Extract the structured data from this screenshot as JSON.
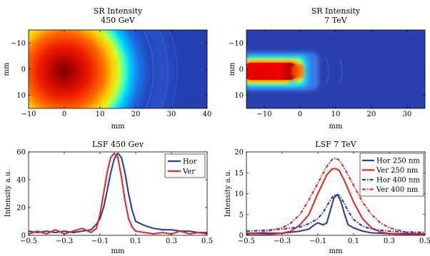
{
  "chart_data": [
    {
      "type": "heatmap",
      "title": "SR Intensity",
      "subtitle": "450 GeV",
      "xlabel": "mm",
      "ylabel": "mm",
      "xlim": [
        -10,
        40
      ],
      "ylim": [
        -15,
        15
      ],
      "y_reversed": true,
      "xticks": [
        -10,
        0,
        10,
        20,
        30,
        40
      ],
      "yticks": [
        -10,
        0,
        10
      ],
      "colormap": "jet",
      "peak_center": [
        0,
        0
      ],
      "description_values": {
        "peak_radius_mm": 6,
        "half_max_radius_mm": 14,
        "fringe_radius_mm": [
          19,
          25,
          32
        ]
      }
    },
    {
      "type": "heatmap",
      "title": "SR Intensity",
      "subtitle": "7 TeV",
      "xlabel": "mm",
      "ylabel": "mm",
      "xlim": [
        -15,
        35
      ],
      "ylim": [
        -15,
        15
      ],
      "y_reversed": true,
      "xticks": [
        -10,
        0,
        10,
        20,
        30
      ],
      "yticks": [
        -10,
        0,
        10
      ],
      "colormap": "jet",
      "peak_center": [
        -7,
        0
      ]
    },
    {
      "type": "line",
      "title": "LSF 450 Gev",
      "xlabel": "mm",
      "ylabel": "Intensity a.u.",
      "xlim": [
        -0.5,
        0.5
      ],
      "ylim": [
        0,
        60
      ],
      "xticks": [
        -0.5,
        -0.3,
        -0.1,
        0.1,
        0.3,
        0.5
      ],
      "xtick_labels": [
        "-0.5",
        "-0.3",
        "-0.1",
        "0.1",
        "0.3",
        "0.5"
      ],
      "yticks": [
        0,
        20,
        40,
        60
      ],
      "legend": "top-right",
      "series": [
        {
          "name": "Hor",
          "color": "#2b3f9e",
          "dash": "solid",
          "x": [
            -0.5,
            -0.45,
            -0.4,
            -0.35,
            -0.3,
            -0.25,
            -0.2,
            -0.15,
            -0.12,
            -0.1,
            -0.08,
            -0.06,
            -0.04,
            -0.02,
            0.0,
            0.02,
            0.04,
            0.06,
            0.08,
            0.1,
            0.15,
            0.2,
            0.25,
            0.3,
            0.35,
            0.4,
            0.45,
            0.5
          ],
          "y": [
            3,
            2,
            3,
            2,
            3,
            2,
            3,
            4,
            8,
            12,
            20,
            32,
            45,
            55,
            59,
            56,
            45,
            30,
            18,
            10,
            7,
            5,
            4,
            4,
            3,
            3,
            2,
            2
          ]
        },
        {
          "name": "Ver",
          "color": "#e8262b",
          "dash": "solid",
          "x": [
            -0.5,
            -0.45,
            -0.4,
            -0.35,
            -0.3,
            -0.25,
            -0.2,
            -0.15,
            -0.12,
            -0.1,
            -0.08,
            -0.06,
            -0.04,
            -0.02,
            0.0,
            0.02,
            0.04,
            0.06,
            0.08,
            0.1,
            0.15,
            0.2,
            0.25,
            0.3,
            0.35,
            0.4,
            0.45,
            0.5
          ],
          "y": [
            1,
            3,
            1,
            4,
            1,
            3,
            5,
            2,
            5,
            15,
            30,
            45,
            56,
            59,
            56,
            42,
            25,
            12,
            6,
            3,
            2,
            1,
            2,
            1,
            3,
            1,
            2,
            1
          ]
        }
      ]
    },
    {
      "type": "line",
      "title": "LSF 7 TeV",
      "xlabel": "mm",
      "ylabel": "Intensity a.u.",
      "xlim": [
        -0.5,
        0.5
      ],
      "ylim": [
        0,
        20
      ],
      "xticks": [
        -0.5,
        -0.3,
        -0.1,
        0.1,
        0.3,
        0.5
      ],
      "xtick_labels": [
        "-0.5",
        "-0.3",
        "-0.1",
        "0.1",
        "0.3",
        "0.5"
      ],
      "yticks": [
        0,
        5,
        10,
        15,
        20
      ],
      "legend": "top-right",
      "series": [
        {
          "name": "Hor 250 nm",
          "color": "#2b3f9e",
          "dash": "solid",
          "x": [
            -0.5,
            -0.4,
            -0.3,
            -0.2,
            -0.15,
            -0.12,
            -0.1,
            -0.07,
            -0.05,
            -0.03,
            -0.01,
            0.01,
            0.03,
            0.05,
            0.07,
            0.1,
            0.15,
            0.2,
            0.3,
            0.4,
            0.5
          ],
          "y": [
            0.5,
            0.5,
            0.5,
            1,
            1.5,
            2.5,
            3,
            2.5,
            3,
            6,
            9,
            9.8,
            8,
            5,
            2.5,
            1.8,
            1,
            0.6,
            0.4,
            0.4,
            0.3
          ]
        },
        {
          "name": "Ver 250 nm",
          "color": "#e8262b",
          "dash": "solid",
          "x": [
            -0.5,
            -0.4,
            -0.3,
            -0.25,
            -0.2,
            -0.15,
            -0.1,
            -0.05,
            -0.02,
            0.0,
            0.02,
            0.05,
            0.1,
            0.15,
            0.2,
            0.25,
            0.3,
            0.4,
            0.5
          ],
          "y": [
            0,
            0.1,
            0.5,
            1,
            2.5,
            5,
            10,
            14.5,
            15.9,
            16,
            15.5,
            13,
            8,
            4,
            1.8,
            0.8,
            0.4,
            0.1,
            0
          ]
        },
        {
          "name": "Hor 400 nm",
          "color": "#2b3f9e",
          "dash": "dashdot",
          "x": [
            -0.5,
            -0.4,
            -0.3,
            -0.2,
            -0.15,
            -0.1,
            -0.07,
            -0.05,
            -0.03,
            -0.01,
            0.01,
            0.03,
            0.05,
            0.07,
            0.1,
            0.15,
            0.2,
            0.3,
            0.4,
            0.5
          ],
          "y": [
            1,
            1.2,
            1.5,
            2,
            2.8,
            4,
            5.5,
            7,
            8.5,
            9.6,
            9.8,
            9,
            7.5,
            5.8,
            3.8,
            2.2,
            1.5,
            1,
            0.8,
            0.7
          ]
        },
        {
          "name": "Ver 400 nm",
          "color": "#e8262b",
          "dash": "dashdot",
          "x": [
            -0.5,
            -0.4,
            -0.3,
            -0.25,
            -0.2,
            -0.15,
            -0.1,
            -0.05,
            -0.02,
            0.0,
            0.02,
            0.05,
            0.1,
            0.15,
            0.2,
            0.25,
            0.3,
            0.4,
            0.5
          ],
          "y": [
            0.3,
            0.8,
            1.8,
            3,
            5,
            8.5,
            12.5,
            16.5,
            18.2,
            18.5,
            18,
            16,
            12,
            8,
            5,
            3,
            1.8,
            0.7,
            0.3
          ]
        }
      ]
    }
  ]
}
